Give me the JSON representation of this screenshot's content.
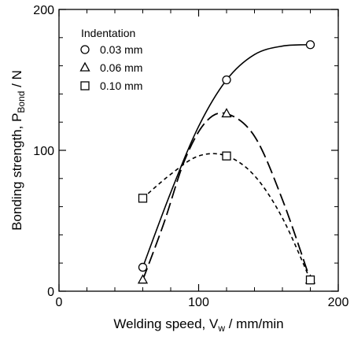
{
  "chart_data": {
    "type": "line",
    "xlabel": {
      "main": "Welding speed, V",
      "sub": "w",
      "unit": " / mm/min"
    },
    "ylabel": {
      "main": "Bonding strength, P",
      "sub": "Bond",
      "unit": " / N"
    },
    "xlim": [
      0,
      200
    ],
    "ylim": [
      0,
      200
    ],
    "x_major_ticks": [
      0,
      100,
      200
    ],
    "y_major_ticks": [
      0,
      100,
      200
    ],
    "x_minor_ticks": [
      20,
      40,
      60,
      80,
      120,
      140,
      160,
      180
    ],
    "y_minor_ticks": [
      20,
      40,
      60,
      80,
      120,
      140,
      160,
      180
    ],
    "x_tick_labels": [
      "0",
      "100",
      "200"
    ],
    "y_tick_labels": [
      "0",
      "100",
      "200"
    ],
    "grid": false,
    "legend": {
      "title": "Indentation",
      "position": "top-left"
    },
    "series": [
      {
        "name": "0.03 mm",
        "marker": "circle",
        "line_style": "solid",
        "points": [
          [
            60,
            17
          ],
          [
            120,
            150
          ],
          [
            180,
            175
          ]
        ],
        "curve": [
          [
            60,
            17
          ],
          [
            80,
            70
          ],
          [
            100,
            117
          ],
          [
            120,
            150
          ],
          [
            140,
            168
          ],
          [
            160,
            174
          ],
          [
            180,
            175
          ]
        ]
      },
      {
        "name": "0.06 mm",
        "marker": "triangle",
        "line_style": "long-dash",
        "points": [
          [
            60,
            8
          ],
          [
            120,
            126
          ],
          [
            180,
            8
          ]
        ],
        "curve": [
          [
            60,
            8
          ],
          [
            75,
            48
          ],
          [
            90,
            93
          ],
          [
            105,
            120
          ],
          [
            120,
            126
          ],
          [
            140,
            110
          ],
          [
            160,
            65
          ],
          [
            180,
            8
          ]
        ]
      },
      {
        "name": "0.10 mm",
        "marker": "square",
        "line_style": "short-dash",
        "points": [
          [
            60,
            66
          ],
          [
            120,
            96
          ],
          [
            180,
            8
          ]
        ],
        "curve": [
          [
            60,
            66
          ],
          [
            80,
            83
          ],
          [
            100,
            96
          ],
          [
            120,
            96
          ],
          [
            140,
            82
          ],
          [
            160,
            52
          ],
          [
            180,
            8
          ]
        ]
      }
    ]
  }
}
